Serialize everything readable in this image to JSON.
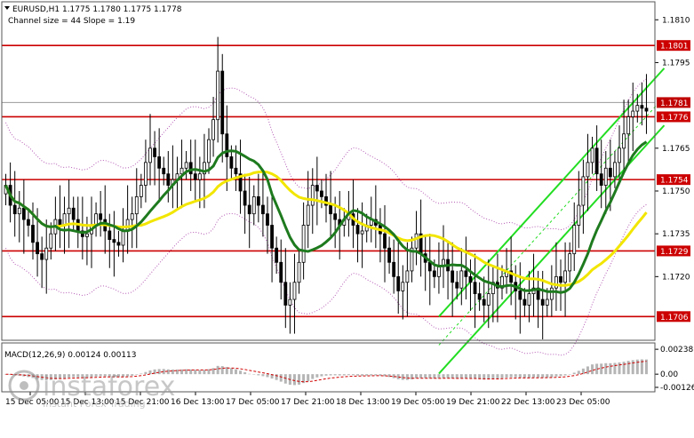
{
  "header": {
    "symbol_line": "EURUSD,H1  1.1775 1.1780 1.1775 1.1778",
    "channel_line": "Channel size = 44 Slope = 1.19"
  },
  "watermark": {
    "brand": "instaforex",
    "tagline": "Instant Forex Trading"
  },
  "chart_data": [
    {
      "type": "candlestick",
      "title": "EURUSD,H1",
      "ylim": [
        1.1698,
        1.1816
      ],
      "price_ticks": [
        "1.1810",
        "1.1795",
        "1.1765",
        "1.1750",
        "1.1735",
        "1.1720"
      ],
      "time_ticks": [
        "15 Dec 05:00",
        "15 Dec 13:00",
        "15 Dec 21:00",
        "16 Dec 13:00",
        "17 Dec 05:00",
        "17 Dec 21:00",
        "18 Dec 13:00",
        "19 Dec 05:00",
        "19 Dec 21:00",
        "22 Dec 13:00",
        "23 Dec 05:00"
      ],
      "current_price": "1.1781",
      "levels": [
        {
          "label": "1.1801",
          "value": 1.1801
        },
        {
          "label": "1.1776",
          "value": 1.1776
        },
        {
          "label": "1.1754",
          "value": 1.1754
        },
        {
          "label": "1.1729",
          "value": 1.1729
        },
        {
          "label": "1.1706",
          "value": 1.1706
        }
      ],
      "close_series": [
        1.1752,
        1.1745,
        1.1742,
        1.1744,
        1.174,
        1.1738,
        1.1732,
        1.1728,
        1.1726,
        1.173,
        1.1735,
        1.174,
        1.1738,
        1.1742,
        1.1744,
        1.174,
        1.1736,
        1.1734,
        1.1735,
        1.1738,
        1.1742,
        1.174,
        1.1736,
        1.1733,
        1.1732,
        1.1731,
        1.1736,
        1.174,
        1.1742,
        1.1748,
        1.1752,
        1.176,
        1.1765,
        1.1762,
        1.1758,
        1.1756,
        1.1752,
        1.1754,
        1.1756,
        1.1758,
        1.176,
        1.1756,
        1.1754,
        1.1756,
        1.176,
        1.1768,
        1.1775,
        1.1792,
        1.177,
        1.1762,
        1.1758,
        1.1756,
        1.175,
        1.1745,
        1.1742,
        1.1748,
        1.1745,
        1.1742,
        1.1738,
        1.173,
        1.1725,
        1.1718,
        1.171,
        1.1712,
        1.1718,
        1.1725,
        1.1738,
        1.1745,
        1.1752,
        1.175,
        1.1748,
        1.1745,
        1.1742,
        1.174,
        1.1738,
        1.174,
        1.1742,
        1.1738,
        1.1735,
        1.1736,
        1.1738,
        1.174,
        1.1738,
        1.1735,
        1.173,
        1.1725,
        1.172,
        1.1715,
        1.1718,
        1.1722,
        1.173,
        1.1735,
        1.1728,
        1.1725,
        1.1722,
        1.172,
        1.1724,
        1.1726,
        1.1722,
        1.1718,
        1.1716,
        1.1722,
        1.172,
        1.1718,
        1.1714,
        1.1712,
        1.171,
        1.1714,
        1.1718,
        1.1716,
        1.172,
        1.1722,
        1.1718,
        1.1715,
        1.1712,
        1.171,
        1.1714,
        1.1716,
        1.1712,
        1.171,
        1.1712,
        1.1716,
        1.172,
        1.1718,
        1.1722,
        1.1728,
        1.1738,
        1.1745,
        1.1755,
        1.176,
        1.1765,
        1.1756,
        1.1752,
        1.1758,
        1.1755,
        1.176,
        1.1765,
        1.177,
        1.1776,
        1.1778,
        1.178,
        1.1779,
        1.1778
      ],
      "indicator": {
        "title": "MACD(12,26,9) 0.00124 0.00113",
        "ylim": [
          -0.0016,
          0.0029
        ],
        "ticks": [
          "0.00238",
          "0.00",
          "-0.00126"
        ]
      },
      "colors": {
        "level_line": "#cc0000",
        "ma_fast": "#1e7a1e",
        "ma_slow": "#f2e600",
        "channel": "#22dd22",
        "envelope": "#b45ab4"
      }
    }
  ]
}
